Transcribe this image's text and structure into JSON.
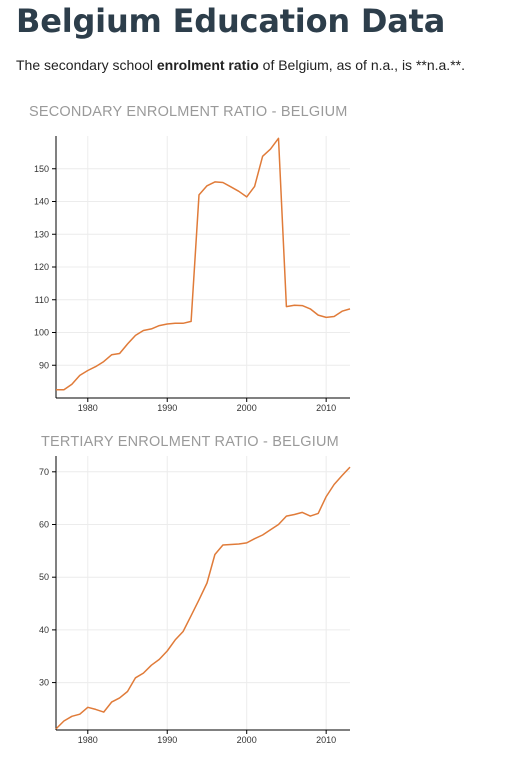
{
  "page": {
    "title": "Belgium Education Data",
    "intro": {
      "prefix": "The secondary school ",
      "bold": "enrolment ratio",
      "suffix": " of Belgium, as of n.a., is **n.a.**."
    }
  },
  "colors": {
    "line": "#e07b39",
    "grid": "#ececec",
    "axis": "#000000"
  },
  "chart_data": [
    {
      "type": "line",
      "title": "SECONDARY ENROLMENT RATIO - BELGIUM",
      "xlim": [
        1976,
        2013
      ],
      "ylim": [
        80,
        160
      ],
      "xticks": [
        1980,
        1990,
        2000,
        2010
      ],
      "yticks": [
        90,
        100,
        110,
        120,
        130,
        140,
        150
      ],
      "grid": "vertical at x ticks, horizontal at y ticks",
      "x": [
        1976,
        1977,
        1978,
        1979,
        1980,
        1981,
        1982,
        1983,
        1984,
        1985,
        1986,
        1987,
        1988,
        1989,
        1990,
        1991,
        1992,
        1993,
        1994,
        1995,
        1996,
        1997,
        1998,
        1999,
        2000,
        2001,
        2002,
        2003,
        2004,
        2005,
        2006,
        2007,
        2008,
        2009,
        2010,
        2011,
        2012,
        2013
      ],
      "y": [
        82.5,
        82.5,
        84.2,
        86.9,
        88.4,
        89.6,
        91.1,
        93.2,
        93.6,
        96.5,
        99.1,
        100.6,
        101.1,
        102.1,
        102.6,
        102.8,
        102.8,
        103.4,
        142.0,
        144.8,
        146.0,
        145.8,
        144.5,
        143.1,
        141.4,
        144.6,
        153.8,
        156.0,
        159.3,
        107.9,
        108.3,
        108.2,
        107.2,
        105.3,
        104.6,
        104.9,
        106.5,
        107.2
      ]
    },
    {
      "type": "line",
      "title": "TERTIARY ENROLMENT RATIO - BELGIUM",
      "xlim": [
        1976,
        2013
      ],
      "ylim": [
        21,
        73
      ],
      "xticks": [
        1980,
        1990,
        2000,
        2010
      ],
      "yticks": [
        30,
        40,
        50,
        60,
        70
      ],
      "grid": "vertical at x ticks, horizontal at y ticks",
      "x": [
        1976,
        1977,
        1978,
        1979,
        1980,
        1981,
        1982,
        1983,
        1984,
        1985,
        1986,
        1987,
        1988,
        1989,
        1990,
        1991,
        1992,
        1993,
        1994,
        1995,
        1996,
        1997,
        1998,
        1999,
        2000,
        2001,
        2002,
        2003,
        2004,
        2005,
        2006,
        2007,
        2008,
        2009,
        2010,
        2011,
        2012,
        2013
      ],
      "y": [
        21.2,
        22.7,
        23.6,
        24.0,
        25.3,
        24.9,
        24.4,
        26.3,
        27.1,
        28.3,
        30.9,
        31.8,
        33.3,
        34.4,
        36.0,
        38.1,
        39.7,
        42.7,
        45.7,
        48.9,
        54.3,
        56.1,
        56.2,
        56.3,
        56.5,
        57.3,
        58.0,
        59.0,
        60.0,
        61.6,
        61.9,
        62.3,
        61.6,
        62.1,
        65.3,
        67.6,
        69.3,
        70.9
      ]
    }
  ]
}
